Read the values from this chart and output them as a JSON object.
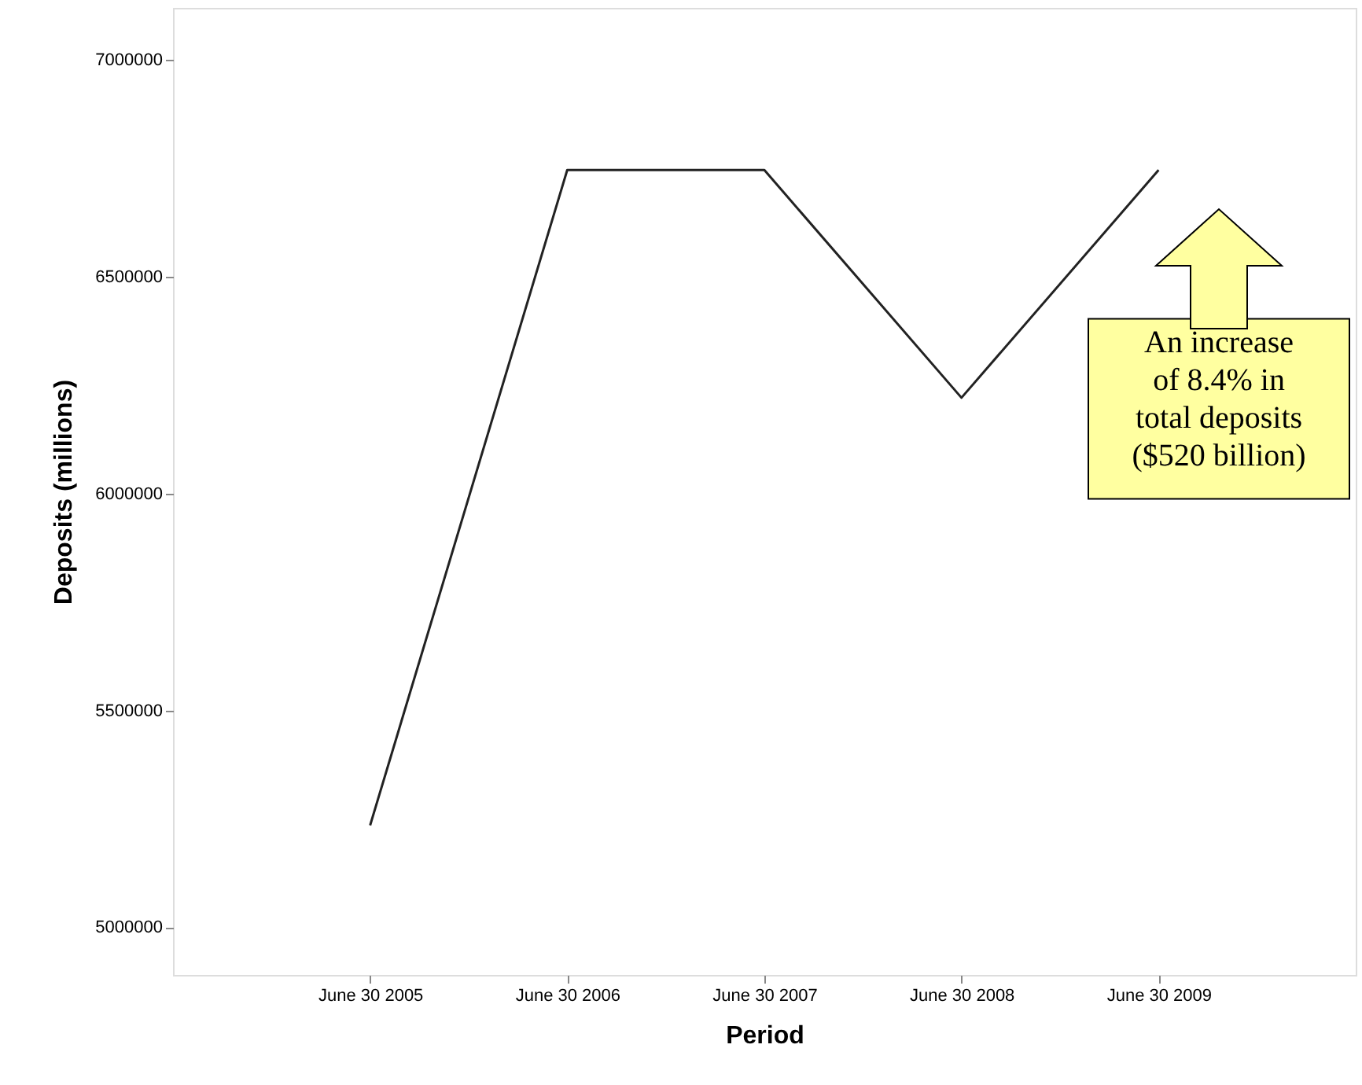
{
  "chart_data": {
    "type": "line",
    "xlabel": "Period",
    "ylabel": "Deposits (millions)",
    "categories": [
      "June 30 2005",
      "June 30 2006",
      "June 30 2007",
      "June 30 2008",
      "June 30 2009"
    ],
    "values": [
      5235000,
      6746000,
      6746000,
      6221000,
      6746000
    ],
    "color": "#222222",
    "marker": "none",
    "line_style": "solid",
    "grid": false,
    "ylim": [
      4890000,
      7120000
    ],
    "yticks": [
      5000000,
      5500000,
      6000000,
      6500000,
      7000000
    ],
    "annotations": [
      "An increase\nof 8.4% in\ntotal deposits\n($520 billion)"
    ]
  }
}
